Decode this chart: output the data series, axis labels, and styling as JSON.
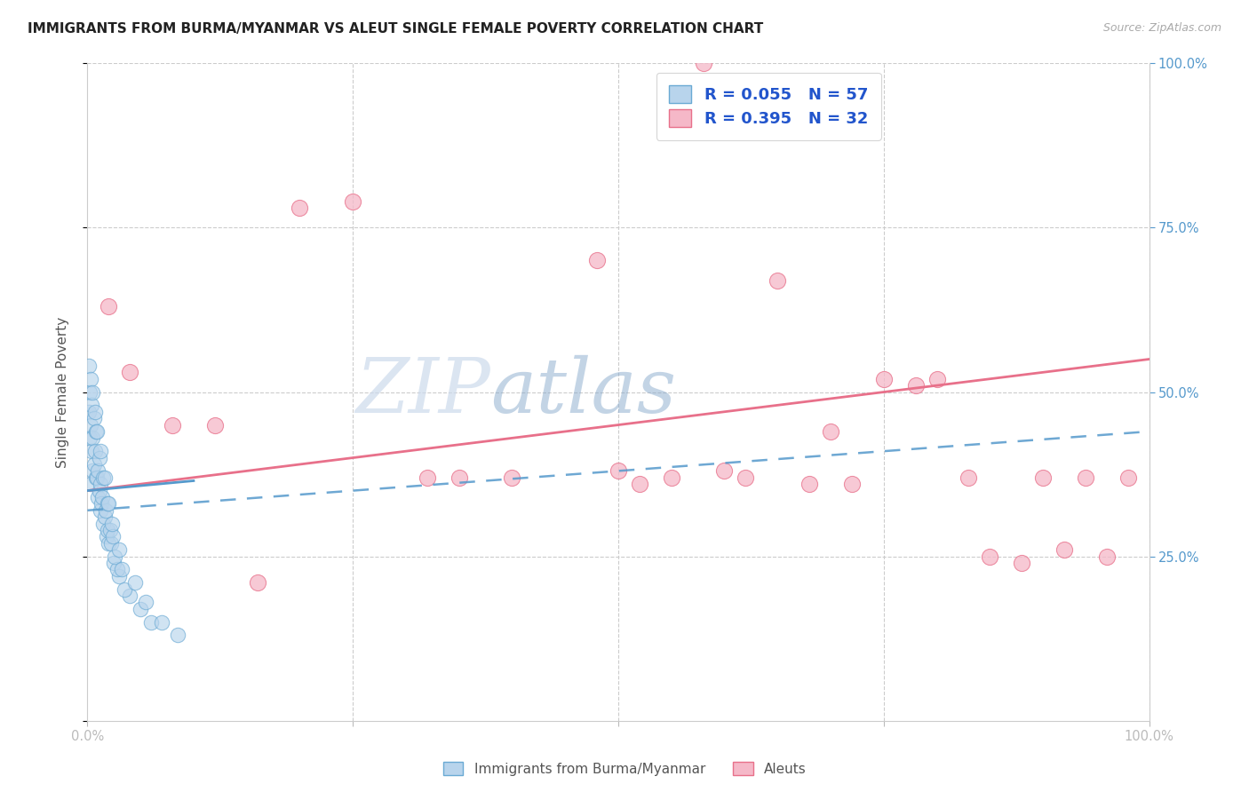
{
  "title": "IMMIGRANTS FROM BURMA/MYANMAR VS ALEUT SINGLE FEMALE POVERTY CORRELATION CHART",
  "source": "Source: ZipAtlas.com",
  "ylabel": "Single Female Poverty",
  "legend_labels": [
    "Immigrants from Burma/Myanmar",
    "Aleuts"
  ],
  "r_burma": 0.055,
  "n_burma": 57,
  "r_aleut": 0.395,
  "n_aleut": 32,
  "blue_fill": "#b8d4ec",
  "blue_edge": "#6aaad4",
  "pink_fill": "#f5b8c8",
  "pink_edge": "#e8708a",
  "blue_line_color": "#5599cc",
  "pink_line_color": "#e8708a",
  "watermark_zip": "#c8d8ec",
  "watermark_atlas": "#88aacc",
  "burma_x": [
    0.3,
    0.5,
    0.8,
    1.0,
    1.2,
    1.5,
    1.8,
    2.0,
    2.5,
    3.0,
    4.0,
    5.0,
    6.0,
    0.2,
    0.4,
    0.6,
    0.9,
    1.1,
    1.3,
    1.6,
    1.9,
    2.2,
    2.8,
    3.5,
    0.1,
    0.3,
    0.5,
    0.7,
    1.0,
    1.2,
    1.4,
    1.7,
    2.1,
    2.6,
    0.2,
    0.4,
    0.6,
    0.8,
    1.1,
    1.5,
    1.9,
    2.4,
    3.2,
    0.1,
    0.3,
    0.5,
    0.7,
    0.9,
    1.2,
    1.6,
    2.0,
    2.3,
    3.0,
    4.5,
    5.5,
    7.0,
    8.5
  ],
  "burma_y": [
    36,
    38,
    37,
    34,
    32,
    30,
    28,
    27,
    24,
    22,
    19,
    17,
    15,
    43,
    41,
    39,
    37,
    35,
    33,
    31,
    29,
    27,
    23,
    20,
    47,
    45,
    43,
    41,
    38,
    36,
    34,
    32,
    29,
    25,
    50,
    48,
    46,
    44,
    40,
    37,
    33,
    28,
    23,
    54,
    52,
    50,
    47,
    44,
    41,
    37,
    33,
    30,
    26,
    21,
    18,
    15,
    13
  ],
  "aleut_x": [
    2.0,
    4.0,
    8.0,
    12.0,
    16.0,
    20.0,
    25.0,
    32.0,
    40.0,
    48.0,
    52.0,
    55.0,
    58.0,
    62.0,
    65.0,
    68.0,
    72.0,
    75.0,
    78.0,
    80.0,
    83.0,
    85.0,
    88.0,
    90.0,
    92.0,
    94.0,
    96.0,
    98.0,
    70.0,
    60.0,
    50.0,
    35.0
  ],
  "aleut_y": [
    63,
    53,
    45,
    45,
    21,
    78,
    79,
    37,
    37,
    70,
    36,
    37,
    100,
    37,
    67,
    36,
    36,
    52,
    51,
    52,
    37,
    25,
    24,
    37,
    26,
    37,
    25,
    37,
    44,
    38,
    38,
    37
  ]
}
